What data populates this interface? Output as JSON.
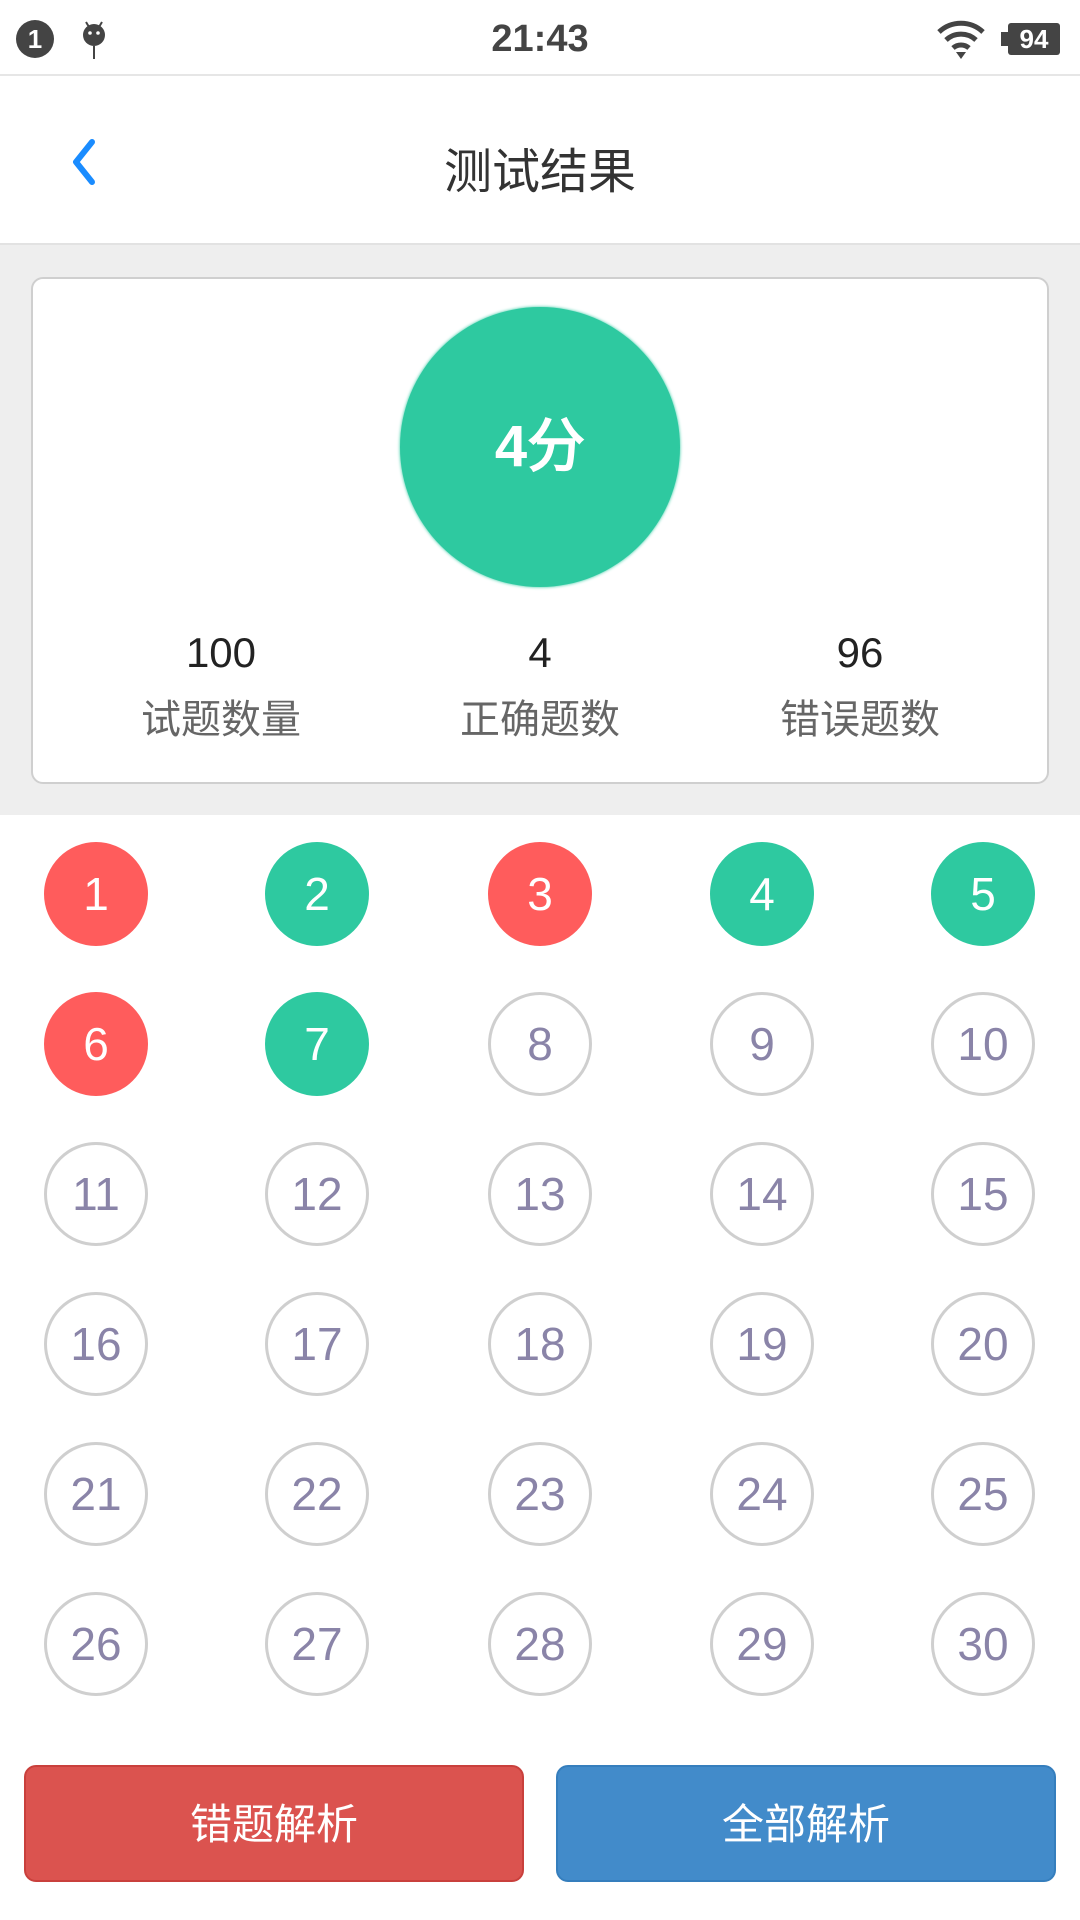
{
  "status_bar": {
    "notification_count": "1",
    "time": "21:43",
    "battery": "94"
  },
  "header": {
    "title": "测试结果"
  },
  "summary": {
    "score": "4分",
    "stats": [
      {
        "value": "100",
        "label": "试题数量"
      },
      {
        "value": "4",
        "label": "正确题数"
      },
      {
        "value": "96",
        "label": "错误题数"
      }
    ]
  },
  "colors": {
    "correct": "#2ec9a0",
    "wrong": "#ff5c5c",
    "unanswered_border": "#cfcfcf",
    "wrong_button": "#db534f",
    "all_button": "#428bca",
    "back": "#1a8cff"
  },
  "questions": [
    {
      "n": "1",
      "state": "wrong"
    },
    {
      "n": "2",
      "state": "correct"
    },
    {
      "n": "3",
      "state": "wrong"
    },
    {
      "n": "4",
      "state": "correct"
    },
    {
      "n": "5",
      "state": "correct"
    },
    {
      "n": "6",
      "state": "wrong"
    },
    {
      "n": "7",
      "state": "correct"
    },
    {
      "n": "8",
      "state": "none"
    },
    {
      "n": "9",
      "state": "none"
    },
    {
      "n": "10",
      "state": "none"
    },
    {
      "n": "11",
      "state": "none"
    },
    {
      "n": "12",
      "state": "none"
    },
    {
      "n": "13",
      "state": "none"
    },
    {
      "n": "14",
      "state": "none"
    },
    {
      "n": "15",
      "state": "none"
    },
    {
      "n": "16",
      "state": "none"
    },
    {
      "n": "17",
      "state": "none"
    },
    {
      "n": "18",
      "state": "none"
    },
    {
      "n": "19",
      "state": "none"
    },
    {
      "n": "20",
      "state": "none"
    },
    {
      "n": "21",
      "state": "none"
    },
    {
      "n": "22",
      "state": "none"
    },
    {
      "n": "23",
      "state": "none"
    },
    {
      "n": "24",
      "state": "none"
    },
    {
      "n": "25",
      "state": "none"
    },
    {
      "n": "26",
      "state": "none"
    },
    {
      "n": "27",
      "state": "none"
    },
    {
      "n": "28",
      "state": "none"
    },
    {
      "n": "29",
      "state": "none"
    },
    {
      "n": "30",
      "state": "none"
    }
  ],
  "buttons": {
    "wrong_analysis": "错题解析",
    "all_analysis": "全部解析"
  }
}
